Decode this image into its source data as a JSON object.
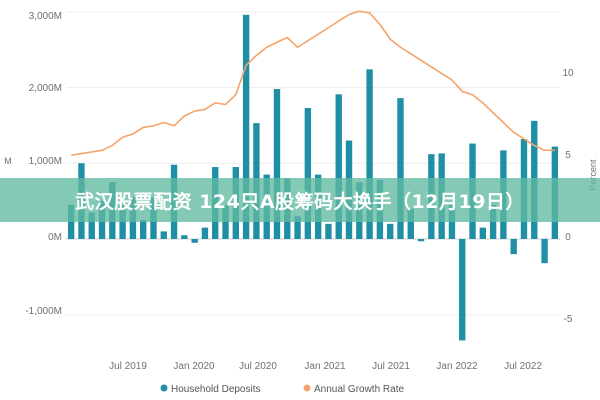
{
  "banner": {
    "text": "武汉股票配资 124只A股筹码大换手（12月19日）"
  },
  "colors": {
    "bars": "#1f8fa6",
    "line": "#f4a46a",
    "banner": "#60baa0"
  },
  "axes": {
    "left_ticks": [
      "3,000M",
      "2,000M",
      "1,000M",
      "0M",
      "-1,000M"
    ],
    "right_ticks": [
      "10",
      "5",
      "0",
      "-5"
    ],
    "left_title": "M",
    "right_title": "Percent",
    "x_ticks": [
      "Jul 2019",
      "Jan 2020",
      "Jul 2020",
      "Jan 2021",
      "Jul 2021",
      "Jan 2022",
      "Jul 2022"
    ]
  },
  "legend": [
    {
      "label": "Household Deposits",
      "color": "#1f8fa6",
      "icon": "dot"
    },
    {
      "label": "Annual Growth Rate",
      "color": "#f4a46a",
      "icon": "dot"
    }
  ],
  "chart_data": {
    "type": "bar+line",
    "x_start": "2019-01",
    "x_ticks": [
      "Jul 2019",
      "Jan 2020",
      "Jul 2020",
      "Jan 2021",
      "Jul 2021",
      "Jan 2022",
      "Jul 2022"
    ],
    "left_ylim": [
      -1400,
      3050
    ],
    "right_ylim": [
      -6.4,
      14.2
    ],
    "series": [
      {
        "name": "Household Deposits",
        "type": "bar",
        "axis": "left",
        "values": [
          450,
          1000,
          350,
          500,
          750,
          450,
          550,
          250,
          550,
          100,
          980,
          50,
          -50,
          150,
          950,
          450,
          950,
          2960,
          1530,
          850,
          1980,
          800,
          300,
          1730,
          850,
          200,
          1910,
          1300,
          750,
          2240,
          780,
          200,
          1860,
          400,
          -30,
          1120,
          1130,
          450,
          -1340,
          1260,
          150,
          450,
          1170,
          -200,
          1320,
          1560,
          -320,
          1220
        ]
      },
      {
        "name": "Annual Growth Rate",
        "type": "line",
        "axis": "right",
        "values": [
          5.2,
          5.3,
          5.4,
          5.5,
          5.8,
          6.3,
          6.5,
          6.9,
          7.0,
          7.2,
          7.0,
          7.6,
          7.9,
          8.0,
          8.4,
          8.3,
          8.9,
          10.7,
          11.3,
          11.8,
          12.1,
          12.4,
          11.8,
          12.2,
          12.6,
          13.0,
          13.4,
          13.8,
          14.0,
          13.9,
          13.2,
          12.3,
          11.8,
          11.4,
          11.0,
          10.6,
          10.2,
          9.8,
          9.1,
          8.9,
          8.4,
          7.8,
          7.2,
          6.6,
          6.2,
          5.8,
          5.5,
          5.5
        ]
      }
    ]
  }
}
